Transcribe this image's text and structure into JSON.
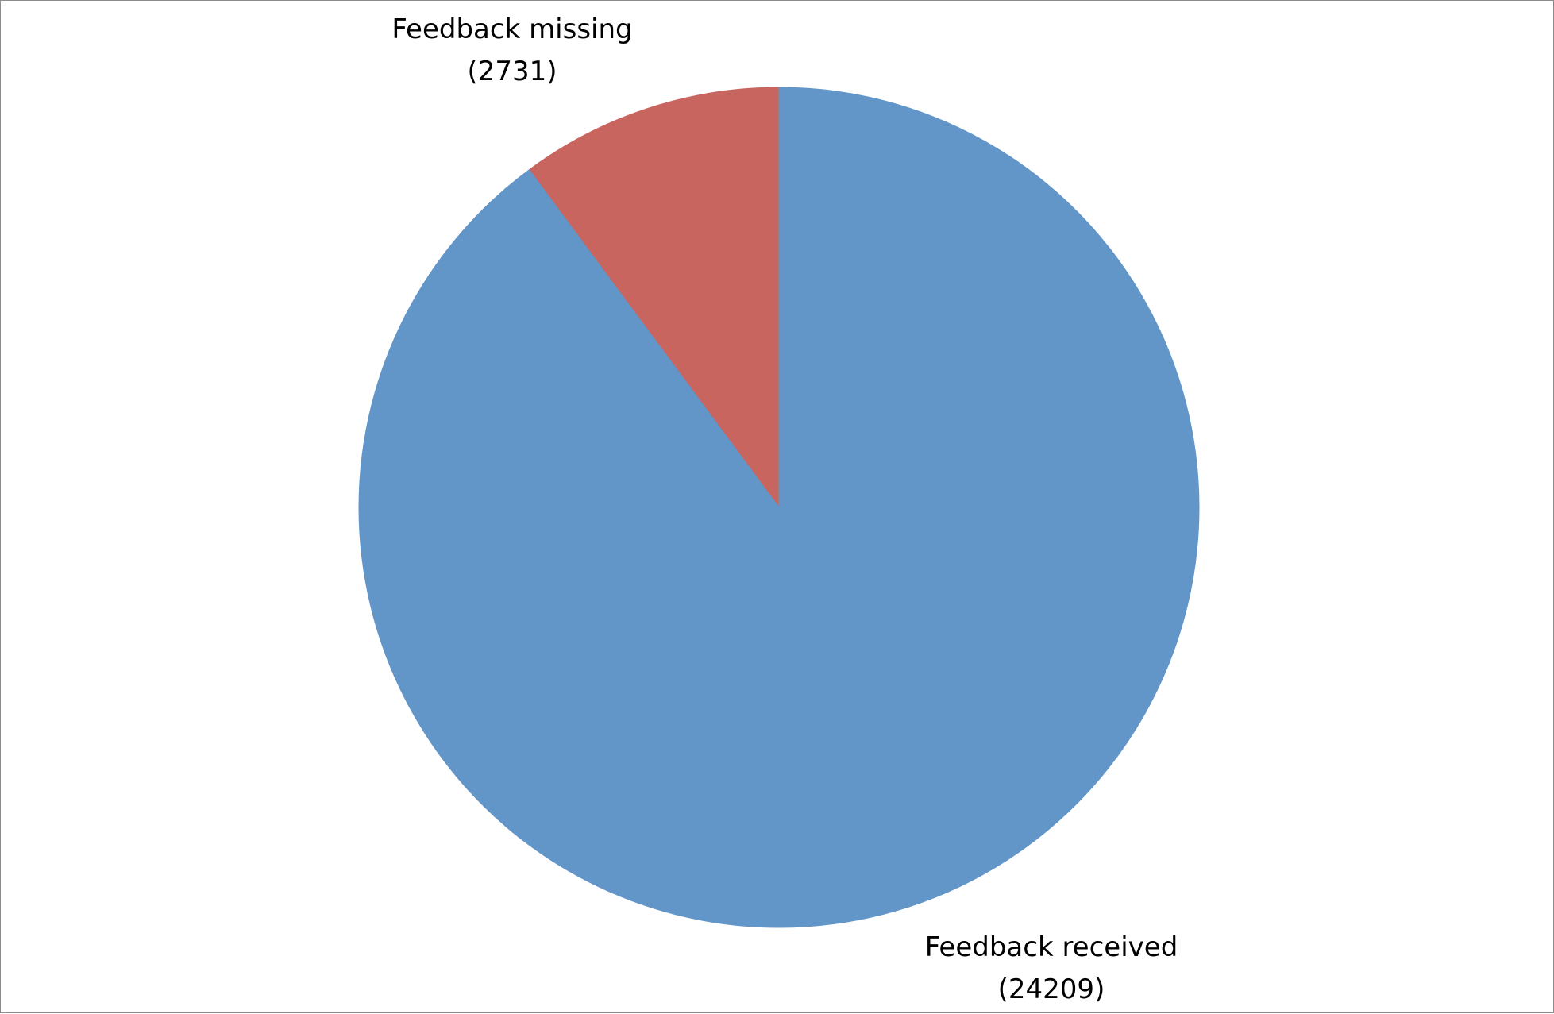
{
  "chart_data": {
    "type": "pie",
    "title": "",
    "slices": [
      {
        "label": "Feedback missing",
        "value": 2731,
        "value_text": "(2731)",
        "color": "#c9655f"
      },
      {
        "label": "Feedback received",
        "value": 24209,
        "value_text": "(24209)",
        "color": "#6295c8"
      }
    ],
    "start_angle": "12 o'clock",
    "direction": "counter-clockwise for first slice",
    "legend": "none"
  }
}
